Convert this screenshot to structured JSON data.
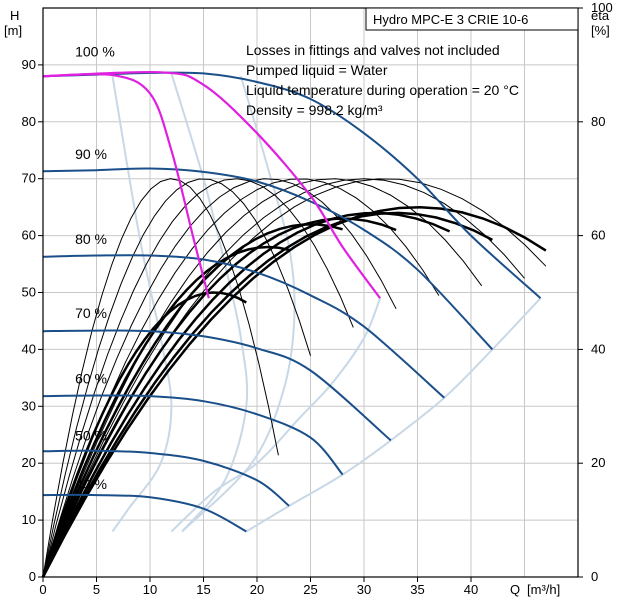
{
  "chart_data": {
    "type": "line",
    "title": "Hydro MPC-E 3 CRIE 10-6",
    "notes": [
      "Losses in fittings and valves not included",
      "Pumped liquid = Water",
      "Liquid temperature during operation = 20 °C",
      "Density = 998.2 kg/m³"
    ],
    "y_axis_left": {
      "label": "H",
      "unit": "[m]",
      "range": [
        0,
        100
      ],
      "ticks": [
        "0",
        "10",
        "20",
        "30",
        "40",
        "50",
        "60",
        "70",
        "80",
        "90"
      ]
    },
    "y_axis_right": {
      "label": "eta",
      "unit": "[%]",
      "range": [
        0,
        100
      ],
      "ticks": [
        "0",
        "20",
        "40",
        "60",
        "80",
        "100"
      ]
    },
    "x_axis": {
      "label": "Q",
      "unit": "[m³/h]",
      "range": [
        0,
        50
      ],
      "ticks": [
        "0",
        "5",
        "10",
        "15",
        "20",
        "25",
        "30",
        "35",
        "40"
      ]
    },
    "grid": true,
    "speed_labels": [
      {
        "text": "100 %",
        "q": 3.0,
        "h": 91.5
      },
      {
        "text": "90 %",
        "q": 3.0,
        "h": 73.5
      },
      {
        "text": "80 %",
        "q": 3.0,
        "h": 58.5
      },
      {
        "text": "70 %",
        "q": 3.0,
        "h": 45.5
      },
      {
        "text": "60 %",
        "q": 3.0,
        "h": 34.0
      },
      {
        "text": "50 %",
        "q": 3.0,
        "h": 24.0
      },
      {
        "text": "40 %",
        "q": 3.0,
        "h": 15.5
      }
    ],
    "head_curves": [
      {
        "speed": "100 %",
        "q_max": 46.5,
        "points": [
          [
            0,
            88
          ],
          [
            5,
            88.3
          ],
          [
            10,
            88.6
          ],
          [
            15,
            88.5
          ],
          [
            20,
            87
          ],
          [
            25,
            84
          ],
          [
            30,
            78
          ],
          [
            35,
            70
          ],
          [
            40,
            60
          ],
          [
            46.5,
            49
          ]
        ]
      },
      {
        "speed": "90 %",
        "q_max": 42.0,
        "points": [
          [
            0,
            71.3
          ],
          [
            5,
            71.5
          ],
          [
            10,
            71.8
          ],
          [
            15,
            71.2
          ],
          [
            20,
            69.5
          ],
          [
            25,
            66
          ],
          [
            30,
            61
          ],
          [
            35,
            54
          ],
          [
            42,
            40
          ]
        ]
      },
      {
        "speed": "80 %",
        "q_max": 37.5,
        "points": [
          [
            0,
            56.3
          ],
          [
            5,
            56.5
          ],
          [
            10,
            56.5
          ],
          [
            15,
            55.8
          ],
          [
            20,
            53.5
          ],
          [
            25,
            49.5
          ],
          [
            30,
            44
          ],
          [
            37.5,
            31.5
          ]
        ]
      },
      {
        "speed": "70 %",
        "q_max": 32.5,
        "points": [
          [
            0,
            43.2
          ],
          [
            5,
            43.3
          ],
          [
            10,
            43.2
          ],
          [
            15,
            42.3
          ],
          [
            20,
            40.2
          ],
          [
            25,
            36.3
          ],
          [
            32.5,
            24
          ]
        ]
      },
      {
        "speed": "60 %",
        "q_max": 28.0,
        "points": [
          [
            0,
            31.8
          ],
          [
            5,
            31.9
          ],
          [
            10,
            31.8
          ],
          [
            15,
            30.9
          ],
          [
            20,
            28.6
          ],
          [
            25,
            24.5
          ],
          [
            28,
            18
          ]
        ]
      },
      {
        "speed": "50 %",
        "q_max": 23.0,
        "points": [
          [
            0,
            22.1
          ],
          [
            5,
            22.2
          ],
          [
            10,
            21.8
          ],
          [
            15,
            20.4
          ],
          [
            20,
            17
          ],
          [
            23,
            12.5
          ]
        ]
      },
      {
        "speed": "40 %",
        "q_max": 19.0,
        "points": [
          [
            0,
            14.4
          ],
          [
            5,
            14.4
          ],
          [
            10,
            14
          ],
          [
            15,
            12
          ],
          [
            19,
            8
          ]
        ]
      }
    ],
    "magenta_curves": [
      {
        "points": [
          [
            0,
            88
          ],
          [
            6.5,
            88.2
          ],
          [
            10,
            85
          ],
          [
            12,
            75
          ],
          [
            14,
            60
          ],
          [
            15.5,
            49
          ]
        ]
      },
      {
        "points": [
          [
            0,
            88
          ],
          [
            11,
            88.7
          ],
          [
            15,
            86.5
          ],
          [
            20,
            78
          ],
          [
            25,
            67
          ],
          [
            28,
            58
          ],
          [
            31.5,
            49
          ]
        ]
      }
    ],
    "efficiency_curves_thin": [
      {
        "q_peak": 12.0,
        "eta_peak": 70,
        "q_end": 22
      },
      {
        "q_peak": 15.0,
        "eta_peak": 70,
        "q_end": 25
      },
      {
        "q_peak": 18.0,
        "eta_peak": 70,
        "q_end": 29
      },
      {
        "q_peak": 21.0,
        "eta_peak": 70,
        "q_end": 33
      },
      {
        "q_peak": 24.0,
        "eta_peak": 70,
        "q_end": 37
      },
      {
        "q_peak": 27.0,
        "eta_peak": 70,
        "q_end": 41
      },
      {
        "q_peak": 30.0,
        "eta_peak": 70,
        "q_end": 45
      },
      {
        "q_peak": 32.0,
        "eta_peak": 70,
        "q_end": 47
      }
    ],
    "efficiency_curves_bold": [
      {
        "q_peak": 16.0,
        "eta_peak": 50,
        "q_end": 19
      },
      {
        "q_peak": 21.0,
        "eta_peak": 58,
        "q_end": 23
      },
      {
        "q_peak": 25.0,
        "eta_peak": 62,
        "q_end": 28
      },
      {
        "q_peak": 28.0,
        "eta_peak": 63,
        "q_end": 33
      },
      {
        "q_peak": 31.0,
        "eta_peak": 64,
        "q_end": 38
      },
      {
        "q_peak": 33.0,
        "eta_peak": 64,
        "q_end": 42
      },
      {
        "q_peak": 35.0,
        "eta_peak": 65,
        "q_end": 47
      }
    ],
    "colors": {
      "head_curve": "#1a4f8a",
      "magenta": "#e020e0",
      "system_curve": "#c8d8e6",
      "grid": "#c8c8c8",
      "efficiency": "#000000"
    }
  }
}
